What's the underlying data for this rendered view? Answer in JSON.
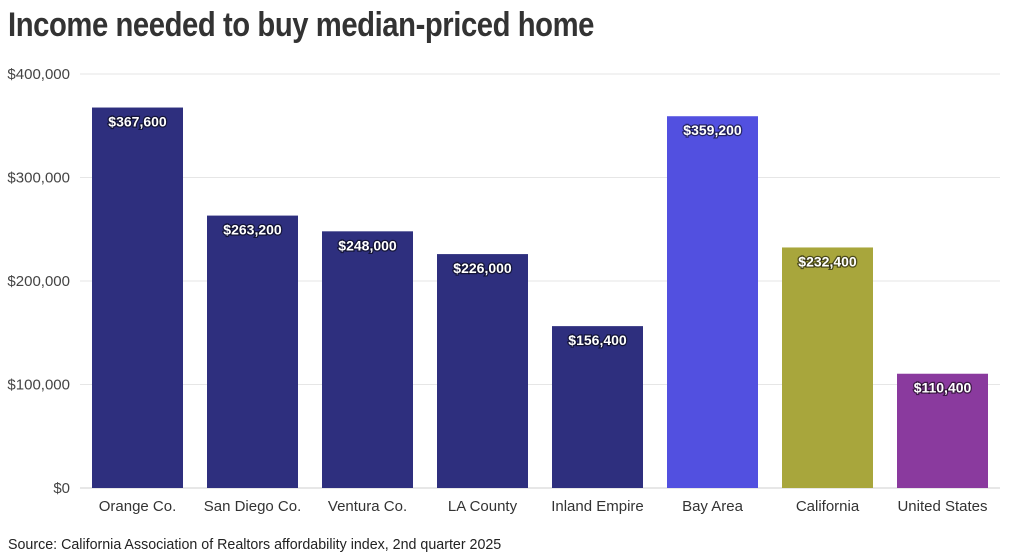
{
  "title": "Income needed to buy median-priced home",
  "source": "Source: California Association of Realtors affordability index, 2nd quarter 2025",
  "chart_data": {
    "type": "bar",
    "categories": [
      "Orange Co.",
      "San Diego Co.",
      "Ventura Co.",
      "LA County",
      "Inland Empire",
      "Bay Area",
      "California",
      "United States"
    ],
    "values": [
      367600,
      263200,
      248000,
      226000,
      156400,
      359200,
      232400,
      110400
    ],
    "data_labels": [
      "$367,600",
      "$263,200",
      "$248,000",
      "$226,000",
      "$156,400",
      "$359,200",
      "$232,400",
      "$110,400"
    ],
    "colors": [
      "#2e2f7e",
      "#2e2f7e",
      "#2e2f7e",
      "#2e2f7e",
      "#2e2f7e",
      "#5250e0",
      "#a8a63c",
      "#8a3a9e"
    ],
    "ylim": [
      0,
      400000
    ],
    "yticks": [
      0,
      100000,
      200000,
      300000,
      400000
    ],
    "ytick_labels": [
      "$0",
      "$100,000",
      "$200,000",
      "$300,000",
      "$400,000"
    ],
    "grid": true,
    "xlabel": "",
    "ylabel": ""
  }
}
